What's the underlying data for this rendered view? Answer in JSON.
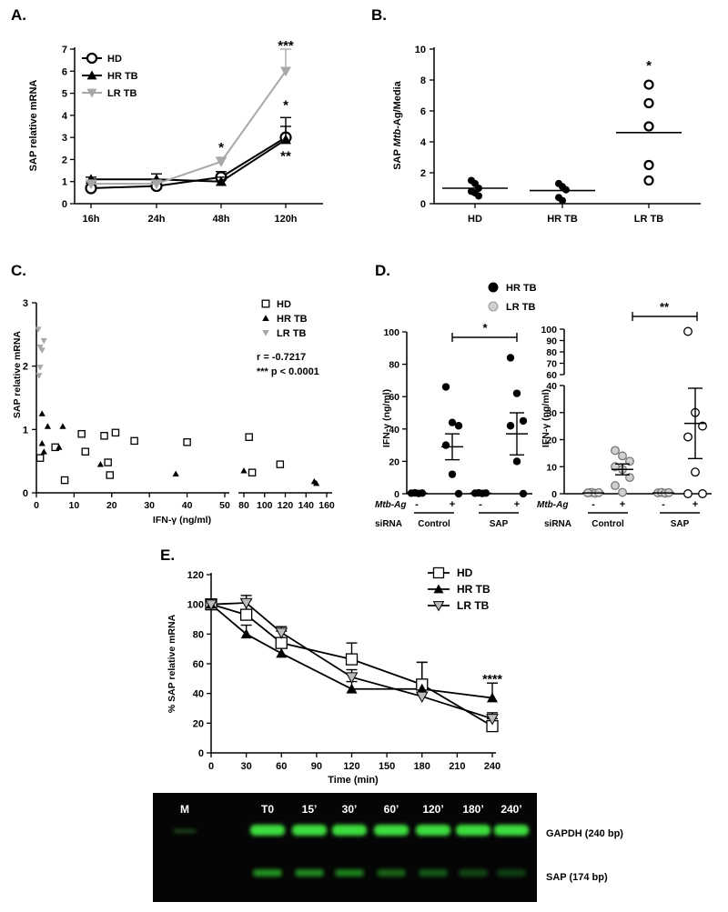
{
  "panels": {
    "A": {
      "letter": "A."
    },
    "B": {
      "letter": "B."
    },
    "C": {
      "letter": "C."
    },
    "D": {
      "letter": "D."
    },
    "E": {
      "letter": "E."
    }
  },
  "colors": {
    "black": "#000000",
    "gray": "#a8a8a8",
    "gel_bg": "#050505",
    "band": "#3ddc3d"
  },
  "chart_data": [
    {
      "id": "A",
      "type": "line",
      "ylabel": "SAP relative mRNA",
      "categories": [
        "16h",
        "24h",
        "48h",
        "120h"
      ],
      "ylim": [
        0,
        7
      ],
      "yticks": [
        0,
        1,
        2,
        3,
        4,
        5,
        6,
        7
      ],
      "series": [
        {
          "name": "HD",
          "marker": "circle-open",
          "color": "#000000",
          "values": [
            0.7,
            0.8,
            1.2,
            3.0
          ],
          "err": [
            0.1,
            0.2,
            0.25,
            0.5
          ]
        },
        {
          "name": "HR TB",
          "marker": "triangle-up",
          "color": "#000000",
          "values": [
            1.1,
            1.1,
            1.0,
            2.9
          ],
          "err": [
            0.1,
            0.25,
            0.2,
            1.0
          ]
        },
        {
          "name": "LR TB",
          "marker": "triangle-down",
          "color": "#a8a8a8",
          "values": [
            0.9,
            0.9,
            1.9,
            6.0
          ],
          "err": [
            0.1,
            0.1,
            0.2,
            1.0
          ]
        }
      ],
      "annotations": [
        {
          "text": "*",
          "x": "48h",
          "y": 2.6
        },
        {
          "text": "***",
          "x": "120h",
          "y": 7.2
        },
        {
          "text": "*",
          "x": "120h",
          "y": 4.5
        },
        {
          "text": "**",
          "x": "120h",
          "y": 2.2
        }
      ],
      "legend_position": "top-left"
    },
    {
      "id": "B",
      "type": "scatter",
      "ylabel_parts": [
        "SAP ",
        "Mtb",
        "-Ag/Media"
      ],
      "categories": [
        "HD",
        "HR TB",
        "LR TB"
      ],
      "ylim": [
        0,
        10
      ],
      "yticks": [
        0,
        2,
        4,
        6,
        8,
        10
      ],
      "groups": [
        {
          "name": "HD",
          "points": [
            1.5,
            1.3,
            1.0,
            0.8,
            0.7,
            0.5
          ],
          "mean": 1.0,
          "filled": true
        },
        {
          "name": "HR TB",
          "points": [
            1.3,
            1.1,
            0.9,
            0.4,
            0.2
          ],
          "mean": 0.85,
          "filled": true
        },
        {
          "name": "LR TB",
          "points": [
            7.7,
            6.5,
            5.0,
            2.5,
            1.5
          ],
          "mean": 4.6,
          "filled": false
        }
      ],
      "annotations": [
        {
          "text": "*",
          "x": "LR TB",
          "y": 9.0
        }
      ]
    },
    {
      "id": "C",
      "type": "scatter",
      "ylabel": "SAP relative mRNA",
      "xlabel": "IFN-γ (ng/ml)",
      "ylim": [
        0,
        3
      ],
      "yticks": [
        0,
        1,
        2,
        3
      ],
      "xticks_left": [
        0,
        10,
        20,
        30,
        40,
        50
      ],
      "xticks_right": [
        80,
        100,
        120,
        140,
        160
      ],
      "stat_r": "r = -0.7217",
      "stat_p": "*** p < 0.0001",
      "series": [
        {
          "name": "HD",
          "marker": "square-open",
          "color": "#000000",
          "points": [
            [
              1,
              0.55
            ],
            [
              5,
              0.72
            ],
            [
              7.5,
              0.2
            ],
            [
              12,
              0.93
            ],
            [
              13,
              0.65
            ],
            [
              18,
              0.9
            ],
            [
              19,
              0.48
            ],
            [
              19.5,
              0.28
            ],
            [
              21,
              0.95
            ],
            [
              26,
              0.82
            ],
            [
              40,
              0.8
            ],
            [
              85,
              0.88
            ],
            [
              88,
              0.32
            ],
            [
              115,
              0.45
            ]
          ]
        },
        {
          "name": "HR TB",
          "marker": "triangle-up",
          "color": "#000000",
          "points": [
            [
              1.5,
              1.25
            ],
            [
              1.5,
              0.78
            ],
            [
              2,
              0.65
            ],
            [
              3,
              1.05
            ],
            [
              6,
              0.72
            ],
            [
              7,
              1.05
            ],
            [
              17,
              0.45
            ],
            [
              37,
              0.3
            ],
            [
              80,
              0.35
            ],
            [
              148,
              0.18
            ],
            [
              150,
              0.15
            ]
          ]
        },
        {
          "name": "LR TB",
          "marker": "triangle-down",
          "color": "#a8a8a8",
          "points": [
            [
              0.5,
              2.58
            ],
            [
              1,
              2.3
            ],
            [
              1.5,
              2.25
            ],
            [
              2,
              2.4
            ],
            [
              0.7,
              1.85
            ],
            [
              1,
              1.98
            ]
          ]
        }
      ]
    },
    {
      "id": "D",
      "type": "scatter",
      "ylabel": "IFN-γ (ng/ml)",
      "legend": [
        {
          "name": "HR TB",
          "fill": "#000000"
        },
        {
          "name": "LR TB",
          "fill": "#d0d0d0"
        }
      ],
      "row_labels": {
        "mtb": "Mtb-Ag",
        "sirna": "siRNA"
      },
      "signs": [
        "-",
        "+",
        "-",
        "+"
      ],
      "groups_labels": [
        "Control",
        "SAP"
      ],
      "subplots": [
        {
          "ylim": [
            0,
            100
          ],
          "yticks": [
            0,
            20,
            40,
            60,
            80,
            100
          ],
          "signif": "*",
          "groups": [
            {
              "points": [
                0.3,
                0.5,
                0.2,
                0.4
              ],
              "mean": 0.3,
              "fill": "#000000"
            },
            {
              "points": [
                66,
                44,
                42,
                30,
                12,
                0
              ],
              "mean": 29,
              "err": 8,
              "fill": "#000000"
            },
            {
              "points": [
                0.3,
                0.5,
                0.2,
                0.4
              ],
              "mean": 0.3,
              "fill": "#000000"
            },
            {
              "points": [
                84,
                62,
                45,
                42,
                20,
                0
              ],
              "mean": 37,
              "err": 13,
              "fill": "#000000"
            }
          ]
        },
        {
          "ylim_low": [
            0,
            40
          ],
          "yticks_low": [
            0,
            10,
            20,
            30,
            40
          ],
          "yticks_high": [
            60,
            70,
            80,
            90,
            100
          ],
          "signif": "**",
          "groups": [
            {
              "points": [
                0.3,
                0.5,
                0.2,
                0.4,
                0.3
              ],
              "mean": 0.3,
              "fill": "#d0d0d0"
            },
            {
              "points": [
                16,
                14,
                12,
                10,
                9,
                6,
                3,
                0.5
              ],
              "mean": 9,
              "err": 2,
              "fill": "#d0d0d0"
            },
            {
              "points": [
                0.3,
                0.5,
                0.2,
                0.4
              ],
              "mean": 0.3,
              "fill": "#d0d0d0"
            },
            {
              "points": [
                98,
                30,
                25,
                21,
                8,
                0,
                0
              ],
              "mean": 26,
              "err": 13,
              "fill": "#ffffff"
            }
          ]
        }
      ]
    },
    {
      "id": "E",
      "type": "line",
      "ylabel": "% SAP relative mRNA",
      "xlabel": "Time (min)",
      "x": [
        0,
        30,
        60,
        120,
        180,
        240
      ],
      "xticks": [
        0,
        30,
        60,
        90,
        120,
        150,
        180,
        210,
        240
      ],
      "ylim": [
        0,
        120
      ],
      "yticks": [
        0,
        20,
        40,
        60,
        80,
        100,
        120
      ],
      "series": [
        {
          "name": "HD",
          "marker": "square-open",
          "values": [
            100,
            93,
            74,
            63,
            46,
            18
          ],
          "err": [
            0,
            10,
            8,
            11,
            15,
            5
          ]
        },
        {
          "name": "HR TB",
          "marker": "triangle-up",
          "values": [
            100,
            80,
            67,
            43,
            43,
            37
          ],
          "err": [
            0,
            6,
            5,
            5,
            18,
            10
          ]
        },
        {
          "name": "LR TB",
          "marker": "triangle-down-open",
          "values": [
            100,
            101,
            81,
            51,
            38,
            23
          ],
          "err": [
            0,
            5,
            4,
            5,
            5,
            4
          ]
        }
      ],
      "annotations": [
        {
          "text": "****",
          "x": 240,
          "y": 51
        }
      ]
    }
  ],
  "gel": {
    "lanes": [
      "M",
      "T0",
      "15’",
      "30’",
      "60’",
      "120’",
      "180’",
      "240’"
    ],
    "labels": [
      "GAPDH (240 bp)",
      "SAP (174 bp)"
    ],
    "sap_intensity": [
      0,
      0.75,
      0.7,
      0.65,
      0.5,
      0.45,
      0.35,
      0.3
    ]
  }
}
